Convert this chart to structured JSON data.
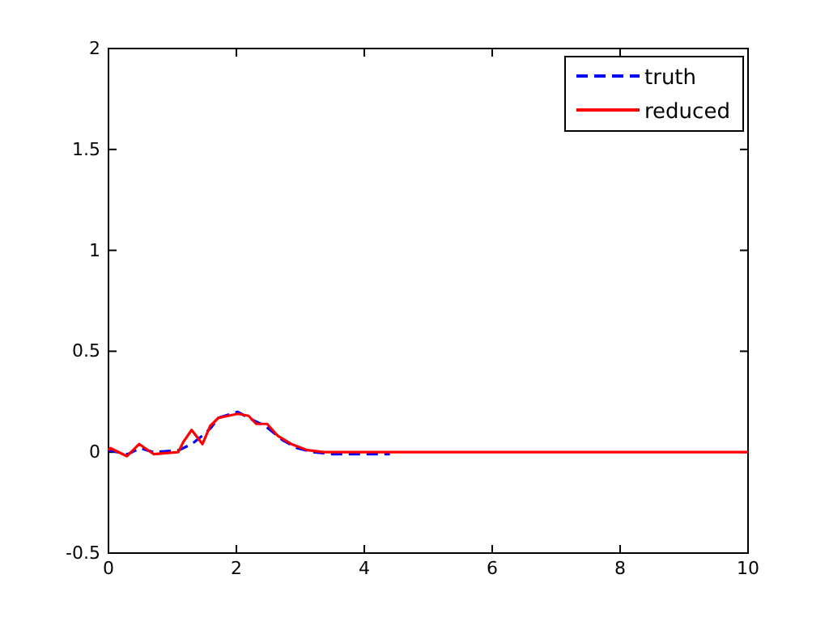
{
  "chart_data": {
    "type": "line",
    "xlim": [
      0,
      10
    ],
    "ylim": [
      -0.5,
      2
    ],
    "xticks": [
      0,
      2,
      4,
      6,
      8,
      10
    ],
    "yticks": [
      -0.5,
      0,
      0.5,
      1,
      1.5,
      2
    ],
    "legend": "top right",
    "grid": false,
    "series": [
      {
        "name": "truth",
        "color": "#0000ff",
        "line_style": "dashed",
        "x": [
          0,
          0.3,
          0.5,
          0.7,
          1.1,
          1.3,
          1.5,
          1.6,
          1.72,
          2.02,
          2.25,
          2.45,
          2.72,
          2.95,
          3.2,
          3.5,
          4.4
        ],
        "values": [
          0.01,
          -0.01,
          0.02,
          0,
          0.01,
          0.04,
          0.09,
          0.12,
          0.17,
          0.2,
          0.16,
          0.13,
          0.06,
          0.02,
          0,
          -0.01,
          -0.01
        ]
      },
      {
        "name": "reduced",
        "color": "#ff0000",
        "line_style": "solid",
        "x": [
          0,
          0.03,
          0.29,
          0.48,
          0.71,
          1.09,
          1.17,
          1.3,
          1.47,
          1.59,
          1.72,
          2.02,
          2.19,
          2.31,
          2.48,
          2.65,
          2.86,
          3.11,
          3.36,
          4.5,
          6,
          8,
          10
        ],
        "values": [
          0.01,
          0.02,
          -0.02,
          0.04,
          -0.01,
          0,
          0.05,
          0.11,
          0.04,
          0.13,
          0.17,
          0.19,
          0.18,
          0.14,
          0.14,
          0.08,
          0.04,
          0.01,
          0,
          0,
          0,
          0,
          0
        ]
      }
    ]
  }
}
